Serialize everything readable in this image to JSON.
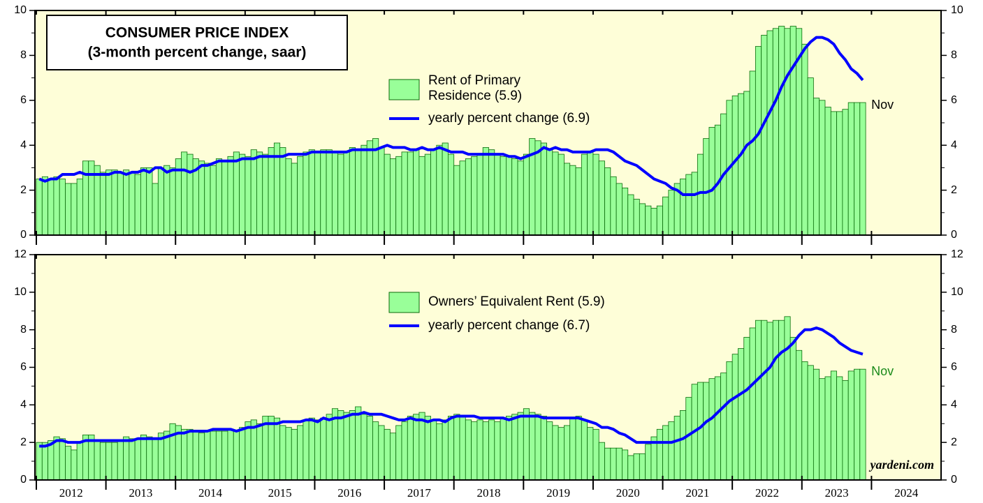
{
  "chart_data": [
    {
      "type": "combo",
      "title": "CONSUMER PRICE INDEX",
      "subtitle": "(3-month percent change, saar)",
      "xlim": [
        2012,
        2025
      ],
      "ylim": [
        0,
        10
      ],
      "yticks": [
        0,
        2,
        4,
        6,
        8,
        10
      ],
      "background": "#fefed8",
      "series": [
        {
          "name": "Rent of Primary Residence (5.9)",
          "kind": "bar",
          "color": "#99ff99",
          "values": [
            2.5,
            2.6,
            2.5,
            2.6,
            2.5,
            2.3,
            2.3,
            2.5,
            3.3,
            3.3,
            3.1,
            2.8,
            2.9,
            2.9,
            2.8,
            2.9,
            2.8,
            2.7,
            3.0,
            3.0,
            2.3,
            3.0,
            3.1,
            3.0,
            3.4,
            3.7,
            3.6,
            3.4,
            3.3,
            3.2,
            3.1,
            3.4,
            3.3,
            3.5,
            3.7,
            3.6,
            3.5,
            3.8,
            3.7,
            3.6,
            3.9,
            4.1,
            3.9,
            3.4,
            3.2,
            3.5,
            3.7,
            3.8,
            3.7,
            3.8,
            3.8,
            3.7,
            3.6,
            3.7,
            3.9,
            3.8,
            4.0,
            4.2,
            4.3,
            3.9,
            3.6,
            3.4,
            3.5,
            3.7,
            3.7,
            3.8,
            3.5,
            3.6,
            3.8,
            4.0,
            4.1,
            3.6,
            3.1,
            3.3,
            3.4,
            3.5,
            3.6,
            3.9,
            3.8,
            3.6,
            3.5,
            3.5,
            3.4,
            3.3,
            3.6,
            4.3,
            4.2,
            4.1,
            3.8,
            3.7,
            3.6,
            3.2,
            3.1,
            3.0,
            3.6,
            3.7,
            3.6,
            3.3,
            3.0,
            2.6,
            2.3,
            2.1,
            1.8,
            1.6,
            1.4,
            1.3,
            1.2,
            1.3,
            1.7,
            2.0,
            2.3,
            2.5,
            2.7,
            2.8,
            3.6,
            4.3,
            4.8,
            4.9,
            5.4,
            6.0,
            6.2,
            6.3,
            6.4,
            7.3,
            8.4,
            8.9,
            9.1,
            9.2,
            9.3,
            9.2,
            9.3,
            9.2,
            8.5,
            7.0,
            6.1,
            6.0,
            5.7,
            5.5,
            5.5,
            5.6,
            5.9,
            5.9,
            5.9
          ]
        },
        {
          "name": "yearly percent change (6.9)",
          "kind": "line",
          "color": "#0000ff",
          "values": [
            2.5,
            2.4,
            2.5,
            2.5,
            2.7,
            2.7,
            2.7,
            2.8,
            2.7,
            2.7,
            2.7,
            2.7,
            2.7,
            2.8,
            2.8,
            2.7,
            2.8,
            2.8,
            2.9,
            2.8,
            3.0,
            3.0,
            2.8,
            2.9,
            2.9,
            2.9,
            2.8,
            2.9,
            3.1,
            3.1,
            3.2,
            3.3,
            3.3,
            3.3,
            3.3,
            3.4,
            3.4,
            3.4,
            3.5,
            3.5,
            3.5,
            3.5,
            3.5,
            3.6,
            3.6,
            3.6,
            3.6,
            3.7,
            3.7,
            3.7,
            3.7,
            3.7,
            3.7,
            3.7,
            3.8,
            3.8,
            3.8,
            3.8,
            3.8,
            3.9,
            4.0,
            3.9,
            3.9,
            3.9,
            3.8,
            3.8,
            3.9,
            3.8,
            3.8,
            3.9,
            3.8,
            3.7,
            3.7,
            3.7,
            3.6,
            3.6,
            3.6,
            3.6,
            3.6,
            3.6,
            3.6,
            3.5,
            3.5,
            3.4,
            3.5,
            3.6,
            3.7,
            3.9,
            3.8,
            3.9,
            3.8,
            3.8,
            3.7,
            3.7,
            3.7,
            3.7,
            3.8,
            3.8,
            3.8,
            3.7,
            3.5,
            3.3,
            3.2,
            3.1,
            2.9,
            2.7,
            2.5,
            2.4,
            2.3,
            2.1,
            2.0,
            1.8,
            1.8,
            1.8,
            1.9,
            1.9,
            2.0,
            2.3,
            2.7,
            3.0,
            3.3,
            3.6,
            4.0,
            4.2,
            4.5,
            5.0,
            5.5,
            6.0,
            6.6,
            7.1,
            7.5,
            7.9,
            8.3,
            8.6,
            8.8,
            8.8,
            8.7,
            8.5,
            8.1,
            7.8,
            7.4,
            7.2,
            6.9
          ]
        }
      ],
      "annotations": [
        {
          "text": "Nov",
          "color": "#000000"
        }
      ]
    },
    {
      "type": "combo",
      "xlim": [
        2012,
        2025
      ],
      "xticks": [
        2012,
        2013,
        2014,
        2015,
        2016,
        2017,
        2018,
        2019,
        2020,
        2021,
        2022,
        2023,
        2024
      ],
      "ylim": [
        0,
        12
      ],
      "yticks": [
        0,
        2,
        4,
        6,
        8,
        10,
        12
      ],
      "background": "#fefed8",
      "series": [
        {
          "name": "Owners’ Equivalent Rent (5.9)",
          "kind": "bar",
          "color": "#99ff99",
          "values": [
            2.0,
            2.0,
            2.1,
            2.3,
            2.2,
            1.8,
            1.6,
            2.0,
            2.4,
            2.4,
            2.1,
            2.0,
            2.0,
            2.0,
            2.1,
            2.3,
            2.2,
            2.2,
            2.4,
            2.3,
            2.2,
            2.5,
            2.6,
            3.0,
            2.9,
            2.7,
            2.7,
            2.6,
            2.5,
            2.6,
            2.6,
            2.6,
            2.6,
            2.7,
            2.6,
            2.8,
            3.1,
            3.2,
            3.0,
            3.4,
            3.4,
            3.3,
            2.9,
            2.8,
            2.7,
            2.9,
            3.2,
            3.3,
            3.2,
            3.3,
            3.5,
            3.8,
            3.7,
            3.6,
            3.7,
            3.9,
            3.5,
            3.4,
            3.1,
            2.9,
            2.7,
            2.5,
            2.9,
            3.1,
            3.4,
            3.5,
            3.6,
            3.4,
            3.2,
            3.0,
            3.2,
            3.4,
            3.5,
            3.4,
            3.2,
            3.1,
            3.2,
            3.1,
            3.2,
            3.1,
            3.3,
            3.4,
            3.5,
            3.6,
            3.8,
            3.6,
            3.5,
            3.4,
            3.1,
            2.9,
            2.8,
            2.9,
            3.3,
            3.4,
            3.2,
            2.8,
            2.7,
            2.0,
            1.7,
            1.7,
            1.7,
            1.6,
            1.3,
            1.4,
            1.4,
            1.9,
            2.3,
            2.7,
            2.9,
            3.1,
            3.4,
            3.7,
            4.4,
            5.1,
            5.2,
            5.2,
            5.4,
            5.5,
            5.7,
            6.3,
            6.7,
            7.0,
            7.6,
            8.1,
            8.5,
            8.5,
            8.4,
            8.5,
            8.5,
            8.7,
            7.6,
            6.9,
            6.3,
            6.1,
            5.9,
            5.4,
            5.5,
            5.8,
            5.5,
            5.3,
            5.8,
            5.9,
            5.9
          ]
        },
        {
          "name": "yearly percent change (6.7)",
          "kind": "line",
          "color": "#0000ff",
          "values": [
            1.8,
            1.8,
            1.9,
            2.1,
            2.1,
            2.0,
            2.0,
            2.0,
            2.1,
            2.1,
            2.1,
            2.1,
            2.1,
            2.1,
            2.1,
            2.1,
            2.1,
            2.2,
            2.2,
            2.2,
            2.2,
            2.2,
            2.3,
            2.4,
            2.5,
            2.5,
            2.6,
            2.6,
            2.6,
            2.6,
            2.7,
            2.7,
            2.7,
            2.7,
            2.6,
            2.7,
            2.8,
            2.8,
            2.9,
            3.0,
            3.0,
            3.0,
            3.1,
            3.1,
            3.1,
            3.1,
            3.2,
            3.2,
            3.1,
            3.3,
            3.2,
            3.3,
            3.3,
            3.4,
            3.5,
            3.5,
            3.6,
            3.5,
            3.5,
            3.5,
            3.4,
            3.3,
            3.2,
            3.2,
            3.3,
            3.2,
            3.2,
            3.1,
            3.2,
            3.2,
            3.1,
            3.3,
            3.4,
            3.4,
            3.4,
            3.4,
            3.3,
            3.3,
            3.3,
            3.3,
            3.3,
            3.2,
            3.3,
            3.4,
            3.4,
            3.4,
            3.4,
            3.3,
            3.3,
            3.3,
            3.3,
            3.3,
            3.3,
            3.3,
            3.2,
            3.1,
            3.0,
            2.8,
            2.8,
            2.7,
            2.5,
            2.4,
            2.2,
            2.0,
            2.0,
            2.0,
            2.0,
            2.0,
            2.0,
            2.0,
            2.1,
            2.2,
            2.4,
            2.6,
            2.8,
            3.1,
            3.3,
            3.6,
            3.9,
            4.2,
            4.4,
            4.6,
            4.8,
            5.1,
            5.4,
            5.7,
            6.0,
            6.5,
            6.8,
            7.0,
            7.3,
            7.7,
            8.0,
            8.0,
            8.1,
            8.0,
            7.8,
            7.6,
            7.3,
            7.1,
            6.9,
            6.8,
            6.7
          ]
        }
      ],
      "annotations": [
        {
          "text": "Nov",
          "color": "#1a8a1a"
        },
        {
          "text": "yardeni.com",
          "color": "#000000"
        }
      ]
    }
  ]
}
